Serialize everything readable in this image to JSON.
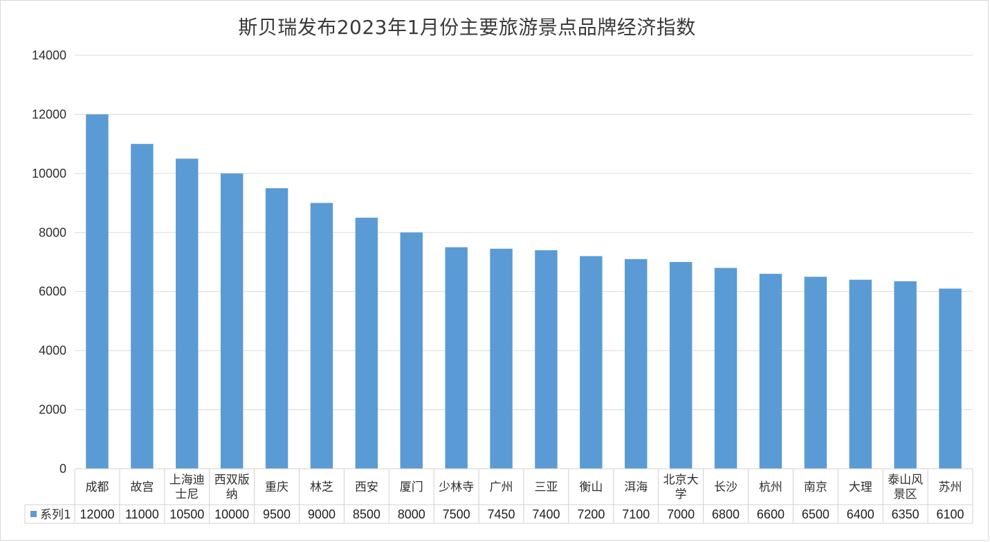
{
  "chart_data": {
    "type": "bar",
    "title": "斯贝瑞发布2023年1月份主要旅游景点品牌经济指数",
    "xlabel": "",
    "ylabel": "",
    "ylim": [
      0,
      14000
    ],
    "yticks": [
      "0",
      "2000",
      "4000",
      "6000",
      "8000",
      "10000",
      "12000",
      "14000"
    ],
    "grid": true,
    "legend": "data-table-left",
    "bar_color": "#5b9bd5",
    "categories": [
      [
        "成都"
      ],
      [
        "故宫"
      ],
      [
        "上海迪",
        "士尼"
      ],
      [
        "西双版",
        "纳"
      ],
      [
        "重庆"
      ],
      [
        "林芝"
      ],
      [
        "西安"
      ],
      [
        "厦门"
      ],
      [
        "少林寺"
      ],
      [
        "广州"
      ],
      [
        "三亚"
      ],
      [
        "衡山"
      ],
      [
        "洱海"
      ],
      [
        "北京大",
        "学"
      ],
      [
        "长沙"
      ],
      [
        "杭州"
      ],
      [
        "南京"
      ],
      [
        "大理"
      ],
      [
        "泰山风",
        "景区"
      ],
      [
        "苏州"
      ]
    ],
    "series": [
      {
        "name": "系列1",
        "values": [
          12000,
          11000,
          10500,
          10000,
          9500,
          9000,
          8500,
          8000,
          7500,
          7450,
          7400,
          7200,
          7100,
          7000,
          6800,
          6600,
          6500,
          6400,
          6350,
          6100
        ]
      }
    ]
  }
}
